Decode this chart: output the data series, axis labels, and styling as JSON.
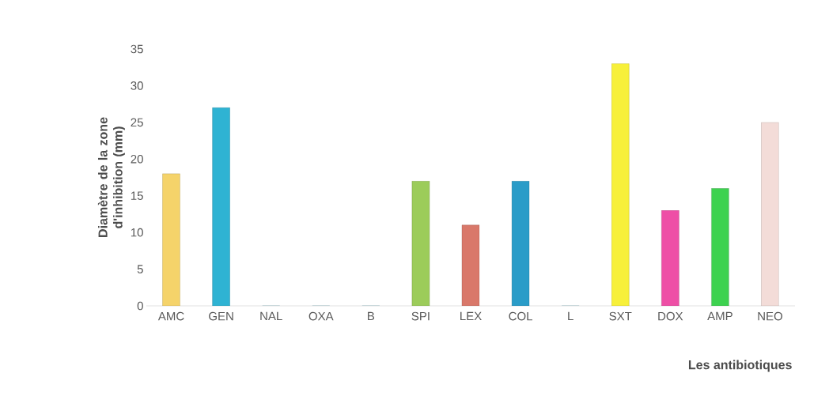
{
  "chart_data": {
    "type": "bar",
    "xlabel": "Les antibiotiques",
    "ylabel": "Diamètre de la zone d'inhibition (mm)",
    "categories": [
      "AMC",
      "GEN",
      "NAL",
      "OXA",
      "B",
      "SPI",
      "LEX",
      "COL",
      "L",
      "SXT",
      "DOX",
      "AMP",
      "NEO"
    ],
    "values": [
      18,
      27,
      0,
      0,
      0,
      17,
      11,
      17,
      0,
      33,
      13,
      16,
      25
    ],
    "colors": [
      "#f5d36a",
      "#2fb3d3",
      "#2fa3c3",
      "#2fa3c3",
      "#2fa3c3",
      "#9ccc5a",
      "#d9786a",
      "#2a9cc8",
      "#2fa3c3",
      "#f7f03a",
      "#ee4fa6",
      "#3dd24f",
      "#f3dcd8"
    ],
    "ylim": [
      0,
      35
    ],
    "yticks": [
      0,
      5,
      10,
      15,
      20,
      25,
      30,
      35
    ],
    "grid": false
  }
}
